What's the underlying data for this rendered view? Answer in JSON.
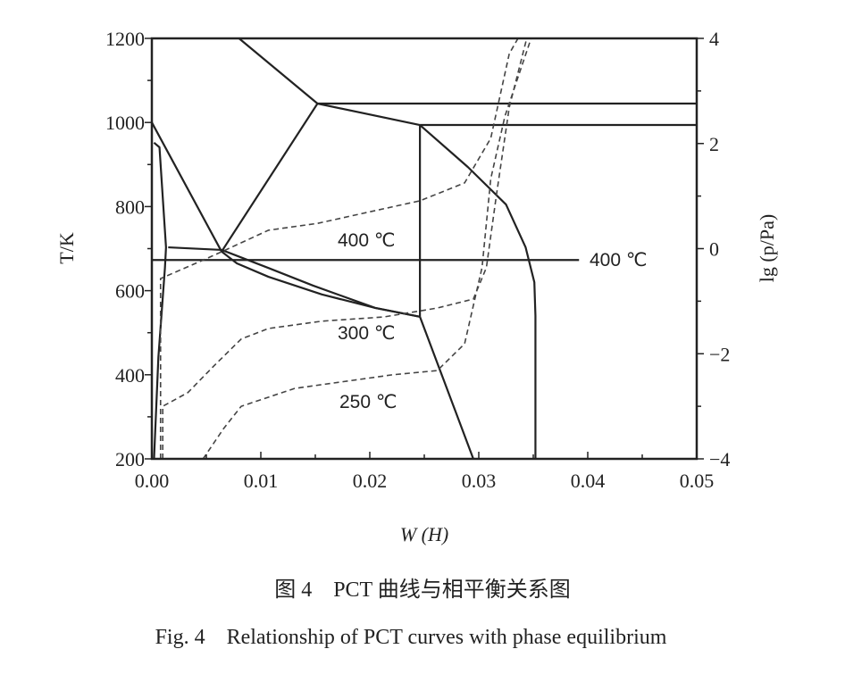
{
  "chart_data": {
    "type": "line",
    "xlabel": "W (H)",
    "ylabel": "T/K",
    "ylabel_right": "lg (p/Pa)",
    "xlim": [
      0,
      0.05
    ],
    "ylim": [
      200,
      1200
    ],
    "ylim_right": [
      -4,
      4
    ],
    "x_ticks": [
      "0.00",
      "0.01",
      "0.02",
      "0.03",
      "0.04",
      "0.05"
    ],
    "y_ticks": [
      "200",
      "400",
      "600",
      "800",
      "1000",
      "1200"
    ],
    "y_ticks_right": [
      "-4",
      "-2",
      "0",
      "2",
      "4"
    ],
    "grid": false,
    "phase_lines": [
      {
        "style": "solid",
        "points": [
          [
            0.008,
            1200
          ],
          [
            0.0152,
            1045
          ]
        ]
      },
      {
        "style": "solid",
        "points": [
          [
            0.0152,
            1045
          ],
          [
            0.0246,
            994
          ]
        ]
      },
      {
        "style": "solid",
        "points": [
          [
            0.0152,
            1045
          ],
          [
            0.05,
            1045
          ]
        ]
      },
      {
        "style": "solid",
        "points": [
          [
            0.0246,
            994
          ],
          [
            0.05,
            994
          ]
        ]
      },
      {
        "style": "solid",
        "points": [
          [
            0.0246,
            994
          ],
          [
            0.029,
            894
          ],
          [
            0.0325,
            805
          ],
          [
            0.0343,
            703
          ],
          [
            0.0351,
            620
          ],
          [
            0.0352,
            540
          ],
          [
            0.0352,
            200
          ]
        ]
      },
      {
        "style": "solid",
        "points": [
          [
            0.0,
            1000
          ],
          [
            0.0064,
            693
          ]
        ]
      },
      {
        "style": "solid",
        "points": [
          [
            0.0064,
            693
          ],
          [
            0.0152,
            1045
          ]
        ]
      },
      {
        "style": "solid",
        "points": [
          [
            0.0246,
            994
          ],
          [
            0.0246,
            538
          ]
        ]
      },
      {
        "style": "solid",
        "points": [
          [
            0.0015,
            703
          ],
          [
            0.0064,
            697
          ],
          [
            0.0107,
            654
          ],
          [
            0.0148,
            612
          ],
          [
            0.0205,
            559
          ],
          [
            0.0246,
            538
          ]
        ]
      },
      {
        "style": "solid",
        "points": [
          [
            0.0064,
            693
          ],
          [
            0.0078,
            665
          ],
          [
            0.0107,
            633
          ],
          [
            0.0156,
            591
          ],
          [
            0.0205,
            559
          ],
          [
            0.0246,
            538
          ]
        ]
      },
      {
        "style": "solid",
        "points": [
          [
            0.0246,
            538
          ],
          [
            0.0295,
            200
          ]
        ]
      },
      {
        "style": "solid",
        "points": [
          [
            0.0002,
            952
          ],
          [
            0.0007,
            941
          ],
          [
            0.0013,
            703
          ],
          [
            0.0012,
            654
          ],
          [
            0.0006,
            442
          ],
          [
            0.0002,
            200
          ]
        ]
      },
      {
        "style": "solid",
        "points": [
          [
            0.0,
            673
          ],
          [
            0.0392,
            673
          ]
        ]
      }
    ],
    "series": [
      {
        "name": "400 ℃",
        "style": "dashed",
        "axis": "right",
        "points": [
          [
            0.0008,
            -4
          ],
          [
            0.0008,
            -0.57
          ],
          [
            0.0049,
            -0.2
          ],
          [
            0.0064,
            -0.06
          ],
          [
            0.0107,
            0.35
          ],
          [
            0.0152,
            0.48
          ],
          [
            0.0189,
            0.65
          ],
          [
            0.0246,
            0.91
          ],
          [
            0.0287,
            1.25
          ],
          [
            0.0311,
            2.1
          ],
          [
            0.0328,
            3.71
          ],
          [
            0.0336,
            4
          ]
        ]
      },
      {
        "name": "300 ℃",
        "style": "dashed",
        "axis": "right",
        "points": [
          [
            0.001,
            -4
          ],
          [
            0.001,
            -3.0
          ],
          [
            0.0033,
            -2.74
          ],
          [
            0.0057,
            -2.23
          ],
          [
            0.0082,
            -1.72
          ],
          [
            0.0107,
            -1.52
          ],
          [
            0.0156,
            -1.38
          ],
          [
            0.0213,
            -1.3
          ],
          [
            0.0262,
            -1.13
          ],
          [
            0.0295,
            -0.96
          ],
          [
            0.0307,
            -0.36
          ],
          [
            0.0316,
            0.99
          ],
          [
            0.0328,
            2.69
          ],
          [
            0.0344,
            4
          ]
        ]
      },
      {
        "name": "250 ℃",
        "style": "dashed",
        "axis": "right",
        "points": [
          [
            0.0047,
            -4
          ],
          [
            0.0066,
            -3.42
          ],
          [
            0.0082,
            -3.0
          ],
          [
            0.0131,
            -2.66
          ],
          [
            0.0221,
            -2.4
          ],
          [
            0.0262,
            -2.32
          ],
          [
            0.0287,
            -1.81
          ],
          [
            0.0303,
            -0.36
          ],
          [
            0.0311,
            1.33
          ],
          [
            0.0324,
            2.52
          ],
          [
            0.0348,
            4
          ]
        ]
      }
    ],
    "annotations": [
      "400 ℃",
      "400 ℃",
      "300 ℃",
      "250 ℃"
    ]
  },
  "caption": {
    "cn": "图 4　PCT 曲线与相平衡关系图",
    "en": "Fig. 4　Relationship of PCT curves with phase equilibrium"
  }
}
